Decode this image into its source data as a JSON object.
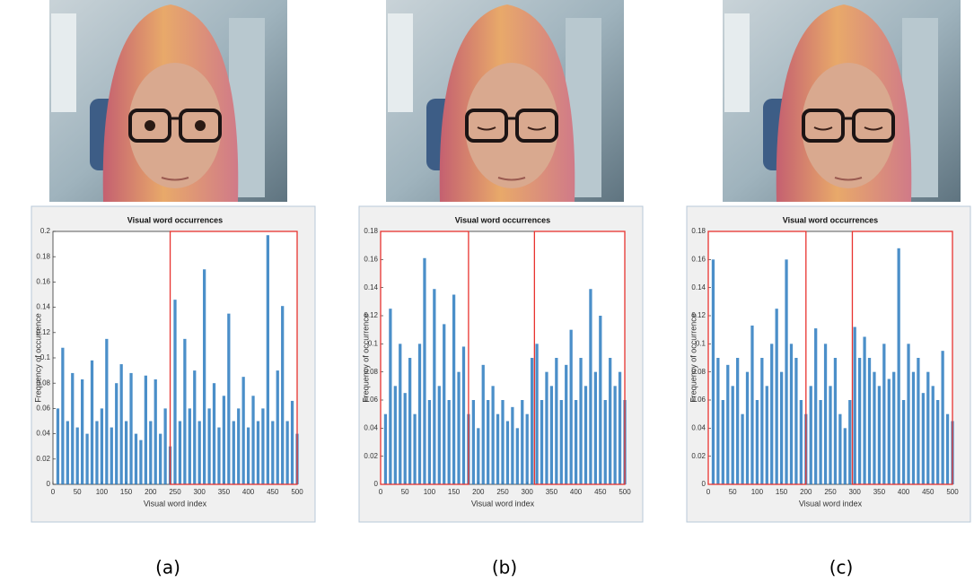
{
  "figure": {
    "captions": [
      "(a)",
      "(b)",
      "(c)"
    ]
  },
  "chart_data": [
    {
      "type": "bar",
      "title": "Visual word occurrences",
      "xlabel": "Visual word index",
      "ylabel": "Frequency of occurrence",
      "color": "#2b7bc0",
      "region_color": "#e8332f",
      "x": [
        10,
        20,
        30,
        40,
        50,
        60,
        70,
        80,
        90,
        100,
        110,
        120,
        130,
        140,
        150,
        160,
        170,
        180,
        190,
        200,
        210,
        220,
        230,
        240,
        250,
        260,
        270,
        280,
        290,
        300,
        310,
        320,
        330,
        340,
        350,
        360,
        370,
        380,
        390,
        400,
        410,
        420,
        430,
        440,
        450,
        460,
        470,
        480,
        490,
        500
      ],
      "values": [
        0.06,
        0.108,
        0.05,
        0.088,
        0.045,
        0.083,
        0.04,
        0.098,
        0.05,
        0.06,
        0.115,
        0.045,
        0.08,
        0.095,
        0.05,
        0.088,
        0.04,
        0.035,
        0.086,
        0.05,
        0.083,
        0.04,
        0.06,
        0.03,
        0.146,
        0.05,
        0.115,
        0.06,
        0.09,
        0.05,
        0.17,
        0.06,
        0.08,
        0.045,
        0.07,
        0.135,
        0.05,
        0.06,
        0.085,
        0.045,
        0.07,
        0.05,
        0.06,
        0.197,
        0.05,
        0.09,
        0.141,
        0.05,
        0.066,
        0.04
      ],
      "xlim": [
        0,
        500
      ],
      "ylim": [
        0,
        0.2
      ],
      "xticks": [
        0,
        50,
        100,
        150,
        200,
        250,
        300,
        350,
        400,
        450,
        500
      ],
      "yticks": [
        0,
        0.02,
        0.04,
        0.06,
        0.08,
        0.1,
        0.12,
        0.14,
        0.16,
        0.18,
        0.2
      ],
      "regions": [
        {
          "xlim": [
            240,
            500
          ],
          "ylim": [
            0,
            0.2
          ]
        }
      ]
    },
    {
      "type": "bar",
      "title": "Visual word occurrences",
      "xlabel": "Visual word index",
      "ylabel": "Frequency of occurrence",
      "color": "#2b7bc0",
      "region_color": "#e8332f",
      "x": [
        10,
        20,
        30,
        40,
        50,
        60,
        70,
        80,
        90,
        100,
        110,
        120,
        130,
        140,
        150,
        160,
        170,
        180,
        190,
        200,
        210,
        220,
        230,
        240,
        250,
        260,
        270,
        280,
        290,
        300,
        310,
        320,
        330,
        340,
        350,
        360,
        370,
        380,
        390,
        400,
        410,
        420,
        430,
        440,
        450,
        460,
        470,
        480,
        490,
        500
      ],
      "values": [
        0.05,
        0.125,
        0.07,
        0.1,
        0.065,
        0.09,
        0.05,
        0.1,
        0.161,
        0.06,
        0.139,
        0.07,
        0.114,
        0.06,
        0.135,
        0.08,
        0.098,
        0.05,
        0.06,
        0.04,
        0.085,
        0.06,
        0.07,
        0.05,
        0.06,
        0.045,
        0.055,
        0.04,
        0.06,
        0.05,
        0.09,
        0.1,
        0.06,
        0.08,
        0.07,
        0.09,
        0.06,
        0.085,
        0.11,
        0.06,
        0.09,
        0.07,
        0.139,
        0.08,
        0.12,
        0.06,
        0.09,
        0.07,
        0.08,
        0.06
      ],
      "xlim": [
        0,
        500
      ],
      "ylim": [
        0,
        0.18
      ],
      "xticks": [
        0,
        50,
        100,
        150,
        200,
        250,
        300,
        350,
        400,
        450,
        500
      ],
      "yticks": [
        0,
        0.02,
        0.04,
        0.06,
        0.08,
        0.1,
        0.12,
        0.14,
        0.16,
        0.18
      ],
      "regions": [
        {
          "xlim": [
            0,
            180
          ],
          "ylim": [
            0,
            0.18
          ]
        },
        {
          "xlim": [
            315,
            500
          ],
          "ylim": [
            0,
            0.18
          ]
        }
      ]
    },
    {
      "type": "bar",
      "title": "Visual word occurrences",
      "xlabel": "Visual word index",
      "ylabel": "Frequency of occurrence",
      "color": "#2b7bc0",
      "region_color": "#e8332f",
      "x": [
        10,
        20,
        30,
        40,
        50,
        60,
        70,
        80,
        90,
        100,
        110,
        120,
        130,
        140,
        150,
        160,
        170,
        180,
        190,
        200,
        210,
        220,
        230,
        240,
        250,
        260,
        270,
        280,
        290,
        300,
        310,
        320,
        330,
        340,
        350,
        360,
        370,
        380,
        390,
        400,
        410,
        420,
        430,
        440,
        450,
        460,
        470,
        480,
        490,
        500
      ],
      "values": [
        0.16,
        0.09,
        0.06,
        0.085,
        0.07,
        0.09,
        0.05,
        0.08,
        0.113,
        0.06,
        0.09,
        0.07,
        0.1,
        0.125,
        0.08,
        0.16,
        0.1,
        0.09,
        0.06,
        0.05,
        0.07,
        0.111,
        0.06,
        0.1,
        0.07,
        0.09,
        0.05,
        0.04,
        0.06,
        0.112,
        0.09,
        0.105,
        0.09,
        0.08,
        0.07,
        0.1,
        0.075,
        0.08,
        0.168,
        0.06,
        0.1,
        0.08,
        0.09,
        0.065,
        0.08,
        0.07,
        0.06,
        0.095,
        0.05,
        0.045
      ],
      "xlim": [
        0,
        500
      ],
      "ylim": [
        0,
        0.18
      ],
      "xticks": [
        0,
        50,
        100,
        150,
        200,
        250,
        300,
        350,
        400,
        450,
        500
      ],
      "yticks": [
        0,
        0.02,
        0.04,
        0.06,
        0.08,
        0.1,
        0.12,
        0.14,
        0.16,
        0.18
      ],
      "regions": [
        {
          "xlim": [
            0,
            200
          ],
          "ylim": [
            0,
            0.18
          ]
        },
        {
          "xlim": [
            295,
            500
          ],
          "ylim": [
            0,
            0.18
          ]
        }
      ]
    }
  ]
}
